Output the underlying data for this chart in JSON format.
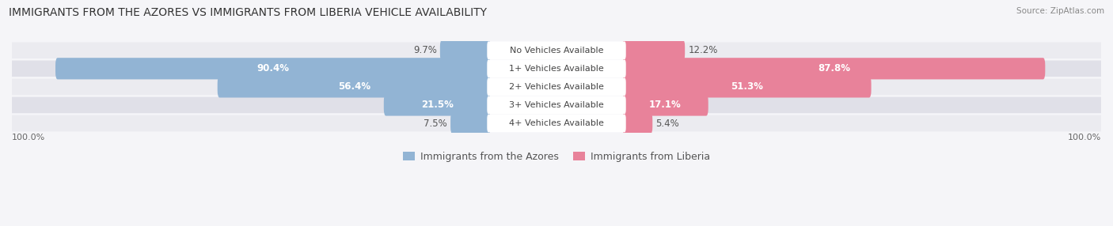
{
  "title": "IMMIGRANTS FROM THE AZORES VS IMMIGRANTS FROM LIBERIA VEHICLE AVAILABILITY",
  "source": "Source: ZipAtlas.com",
  "categories": [
    "No Vehicles Available",
    "1+ Vehicles Available",
    "2+ Vehicles Available",
    "3+ Vehicles Available",
    "4+ Vehicles Available"
  ],
  "azores_values": [
    9.7,
    90.4,
    56.4,
    21.5,
    7.5
  ],
  "liberia_values": [
    12.2,
    87.8,
    51.3,
    17.1,
    5.4
  ],
  "azores_color": "#92b4d4",
  "liberia_color": "#e8829a",
  "row_bg_colors": [
    "#ebebf0",
    "#e0e0e8",
    "#ebebf0",
    "#e0e0e8",
    "#ebebf0"
  ],
  "max_value": 100.0,
  "label_fontsize": 8.5,
  "title_fontsize": 10,
  "category_fontsize": 8,
  "legend_fontsize": 9,
  "inside_label_threshold": 15
}
